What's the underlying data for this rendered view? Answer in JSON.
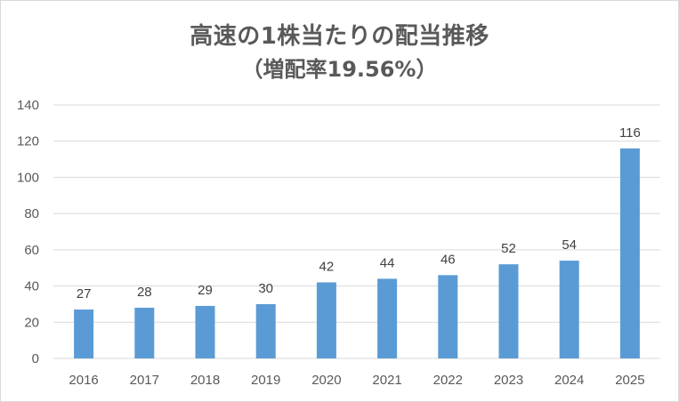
{
  "chart_data": {
    "type": "bar",
    "title": "高速の1株当たりの配当推移",
    "subtitle": "（増配率19.56%）",
    "categories": [
      "2016",
      "2017",
      "2018",
      "2019",
      "2020",
      "2021",
      "2022",
      "2023",
      "2024",
      "2025"
    ],
    "values": [
      27,
      28,
      29,
      30,
      42,
      44,
      46,
      52,
      54,
      116
    ],
    "ylim": [
      0,
      140
    ],
    "yticks": [
      0,
      20,
      40,
      60,
      80,
      100,
      120,
      140
    ],
    "grid": true,
    "legend": "none",
    "bar_color": "#5b9bd5",
    "grid_color": "#d9d9d9"
  }
}
